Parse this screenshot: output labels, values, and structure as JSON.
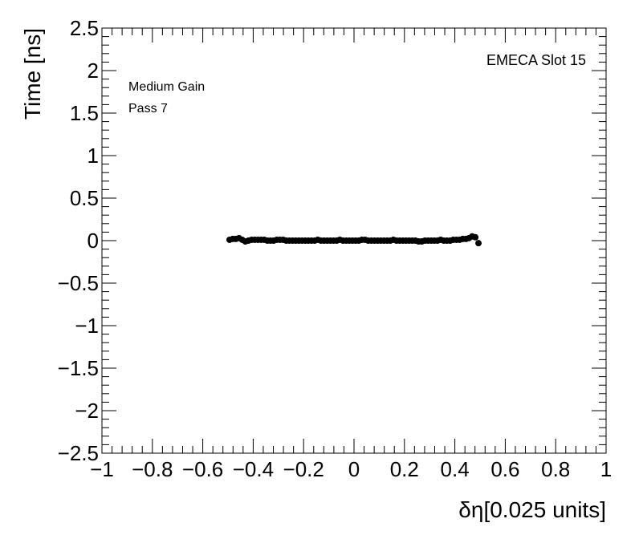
{
  "chart_data": {
    "type": "scatter",
    "title": "",
    "xlabel": "δη[0.025 units]",
    "ylabel": "Time [ns]",
    "xlim": [
      -1,
      1
    ],
    "ylim": [
      -2.5,
      2.5
    ],
    "grid": false,
    "annotations": [
      "EMECA Slot 15",
      "Medium Gain",
      "Pass 7"
    ],
    "x_ticks": [
      -1,
      -0.8,
      -0.6,
      -0.4,
      -0.2,
      0,
      0.2,
      0.4,
      0.6,
      0.8,
      1
    ],
    "x_tick_labels": [
      "−1",
      "−0.8",
      "−0.6",
      "−0.4",
      "−0.2",
      "0",
      "0.2",
      "0.4",
      "0.6",
      "0.8",
      "1"
    ],
    "y_ticks": [
      -2.5,
      -2,
      -1.5,
      -1,
      -0.5,
      0,
      0.5,
      1,
      1.5,
      2,
      2.5
    ],
    "y_tick_labels": [
      "−2.5",
      "−2",
      "−1.5",
      "−1",
      "−0.5",
      "0",
      "0.5",
      "1",
      "1.5",
      "2",
      "2.5"
    ],
    "marker_color": "#000000",
    "series": [
      {
        "x": [
          -0.49375,
          -0.48125,
          -0.46875,
          -0.45625,
          -0.44375,
          -0.43125,
          -0.41875,
          -0.40625,
          -0.39375,
          -0.38125,
          -0.36875,
          -0.35625,
          -0.34375,
          -0.33125,
          -0.31875,
          -0.30625,
          -0.29375,
          -0.28125,
          -0.26875,
          -0.25625,
          -0.24375,
          -0.23125,
          -0.21875,
          -0.20625,
          -0.19375,
          -0.18125,
          -0.16875,
          -0.15625,
          -0.14375,
          -0.13125,
          -0.11875,
          -0.10625,
          -0.09375,
          -0.08125,
          -0.06875,
          -0.05625,
          -0.04375,
          -0.03125,
          -0.01875,
          -0.00625,
          0.00625,
          0.01875,
          0.03125,
          0.04375,
          0.05625,
          0.06875,
          0.08125,
          0.09375,
          0.10625,
          0.11875,
          0.13125,
          0.14375,
          0.15625,
          0.16875,
          0.18125,
          0.19375,
          0.20625,
          0.21875,
          0.23125,
          0.24375,
          0.25625,
          0.26875,
          0.28125,
          0.29375,
          0.30625,
          0.31875,
          0.33125,
          0.34375,
          0.35625,
          0.36875,
          0.38125,
          0.39375,
          0.40625,
          0.41875,
          0.43125,
          0.44375,
          0.45625,
          0.46875,
          0.48125,
          0.49375
        ],
        "y": [
          0.01,
          0.02,
          0.02,
          0.03,
          0.01,
          -0.01,
          0.0,
          0.01,
          0.01,
          0.01,
          0.01,
          0.01,
          0.0,
          0.0,
          0.0,
          0.01,
          0.01,
          0.01,
          0.0,
          0.0,
          0.0,
          0.0,
          0.0,
          0.0,
          0.0,
          0.0,
          0.0,
          0.0,
          0.01,
          0.0,
          0.0,
          0.0,
          0.0,
          0.0,
          0.0,
          0.01,
          0.0,
          0.0,
          0.0,
          0.0,
          0.0,
          0.0,
          0.01,
          0.01,
          0.0,
          0.0,
          0.0,
          0.0,
          0.0,
          0.0,
          0.0,
          0.0,
          0.01,
          0.0,
          0.0,
          0.0,
          0.0,
          0.0,
          0.0,
          0.0,
          -0.01,
          -0.01,
          0.0,
          0.0,
          0.0,
          0.0,
          0.0,
          0.01,
          0.0,
          0.0,
          0.0,
          0.01,
          0.01,
          0.01,
          0.02,
          0.02,
          0.03,
          0.05,
          0.04,
          -0.03
        ]
      }
    ]
  }
}
